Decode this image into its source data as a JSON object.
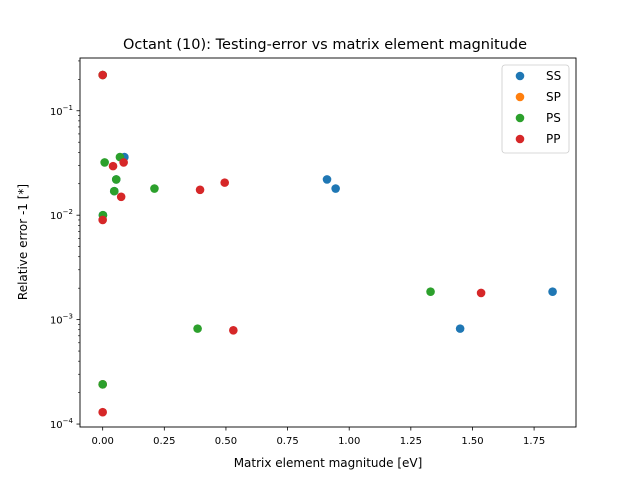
{
  "chart_data": {
    "type": "scatter",
    "title": "Octant (10): Testing-error vs matrix element magnitude",
    "xlabel": "Matrix element magnitude [eV]",
    "ylabel": "Relative error -1 [*]",
    "xlim": [
      -0.092,
      1.92
    ],
    "ylim": [
      9.37e-05,
      0.32
    ],
    "yscale": "log",
    "grid": false,
    "legend_position": "top-right",
    "x_ticks": [
      {
        "value": 0.0,
        "label": "0.00"
      },
      {
        "value": 0.25,
        "label": "0.25"
      },
      {
        "value": 0.5,
        "label": "0.50"
      },
      {
        "value": 0.75,
        "label": "0.75"
      },
      {
        "value": 1.0,
        "label": "1.00"
      },
      {
        "value": 1.25,
        "label": "1.25"
      },
      {
        "value": 1.5,
        "label": "1.50"
      },
      {
        "value": 1.75,
        "label": "1.75"
      }
    ],
    "y_ticks": [
      {
        "value": 0.0001,
        "base": "10",
        "exp": "−4"
      },
      {
        "value": 0.001,
        "base": "10",
        "exp": "−3"
      },
      {
        "value": 0.01,
        "base": "10",
        "exp": "−2"
      },
      {
        "value": 0.1,
        "base": "10",
        "exp": "−1"
      }
    ],
    "series": [
      {
        "name": "SS",
        "color": "#1f77b4",
        "points": [
          {
            "x": 0.0,
            "y": 0.22
          },
          {
            "x": 0.088,
            "y": 0.036
          },
          {
            "x": 0.055,
            "y": 0.022
          },
          {
            "x": 0.047,
            "y": 0.017
          },
          {
            "x": 0.001,
            "y": 0.01
          },
          {
            "x": 0.0,
            "y": 0.00024
          },
          {
            "x": 0.91,
            "y": 0.022
          },
          {
            "x": 0.945,
            "y": 0.018
          },
          {
            "x": 1.45,
            "y": 0.00082
          },
          {
            "x": 1.825,
            "y": 0.00185
          }
        ]
      },
      {
        "name": "SP",
        "color": "#ff7f0e",
        "points": [
          {
            "x": 0.0,
            "y": 0.22
          },
          {
            "x": 0.0,
            "y": 0.00024
          }
        ]
      },
      {
        "name": "PS",
        "color": "#2ca02c",
        "points": [
          {
            "x": 0.0,
            "y": 0.22
          },
          {
            "x": 0.008,
            "y": 0.032
          },
          {
            "x": 0.07,
            "y": 0.036
          },
          {
            "x": 0.055,
            "y": 0.022
          },
          {
            "x": 0.047,
            "y": 0.017
          },
          {
            "x": 0.001,
            "y": 0.01
          },
          {
            "x": 0.21,
            "y": 0.018
          },
          {
            "x": 0.0,
            "y": 0.00024
          },
          {
            "x": 0.385,
            "y": 0.00082
          },
          {
            "x": 1.33,
            "y": 0.00185
          }
        ]
      },
      {
        "name": "PP",
        "color": "#d62728",
        "points": [
          {
            "x": 0.0,
            "y": 0.22
          },
          {
            "x": 0.042,
            "y": 0.0295
          },
          {
            "x": 0.085,
            "y": 0.032
          },
          {
            "x": 0.075,
            "y": 0.015
          },
          {
            "x": 0.0,
            "y": 0.009
          },
          {
            "x": 0.395,
            "y": 0.0175
          },
          {
            "x": 0.495,
            "y": 0.0205
          },
          {
            "x": 0.53,
            "y": 0.00079
          },
          {
            "x": 1.535,
            "y": 0.0018
          },
          {
            "x": 0.0,
            "y": 0.00013
          }
        ]
      }
    ]
  }
}
